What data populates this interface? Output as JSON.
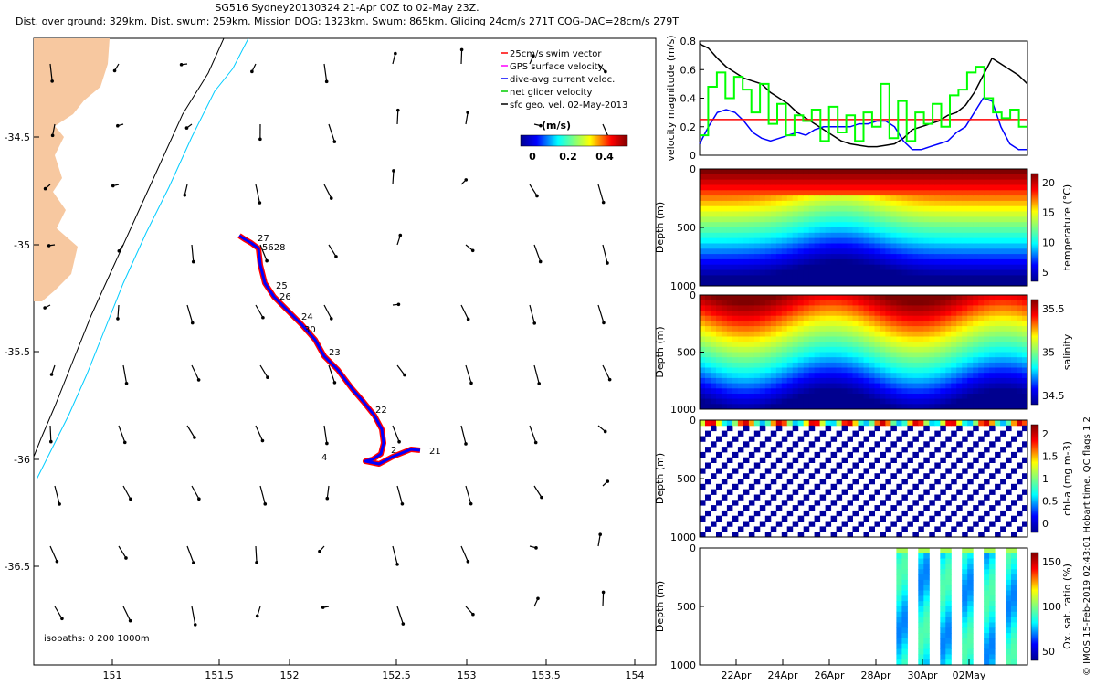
{
  "title_line1": "SG516 Sydney20130324 21-Apr 00Z to 02-May 23Z.",
  "title_line2": "Dist. over ground: 329km. Dist. swum: 259km. Mission DOG: 1323km. Swum: 865km. Gliding 24cm/s 271T COG-DAC=28cm/s 279T",
  "credit": "© IMOS 15-Feb-2019 02:43:01 Hobart time. QC flags 1  2",
  "map": {
    "legend": [
      {
        "label": "25cm/s swim vector",
        "color": "#ff0000"
      },
      {
        "label": "GPS surface velocity",
        "color": "#ff00ff"
      },
      {
        "label": "dive-avg current veloc.",
        "color": "#0000ff"
      },
      {
        "label": "net glider velocity",
        "color": "#00cc00"
      },
      {
        "label": "sfc geo. vel. 02-May-2013",
        "color": "#000000"
      }
    ],
    "colorbar_unit": "(m/s)",
    "colorbar_ticks": [
      "0",
      "0.2",
      "0.4"
    ],
    "isobaths_label": "isobaths: 0   200  1000m",
    "x_ticks": [
      "151",
      "151.5",
      "152",
      "152.5",
      "153",
      "153.5",
      "154"
    ],
    "y_ticks": [
      "-34.5",
      "-35",
      "-35.5",
      "-36",
      "-36.5"
    ],
    "colors": {
      "land": "#f7c8a0",
      "coast_200": "#00ccff",
      "coast_1000": "#000000",
      "track_swim": "#ff0000",
      "track_dac": "#0000ff"
    }
  },
  "chart_data": [
    {
      "type": "line",
      "ylabel": "velocity magnitude (m/s)",
      "y_ticks": [
        "0",
        "0.2",
        "0.4",
        "0.6",
        "0.8"
      ],
      "ylim": [
        0,
        0.8
      ],
      "series": [
        {
          "color": "#000000",
          "values": [
            0.78,
            0.75,
            0.68,
            0.62,
            0.58,
            0.54,
            0.52,
            0.5,
            0.44,
            0.4,
            0.36,
            0.3,
            0.26,
            0.22,
            0.18,
            0.14,
            0.1,
            0.08,
            0.07,
            0.06,
            0.06,
            0.07,
            0.08,
            0.12,
            0.18,
            0.2,
            0.22,
            0.24,
            0.28,
            0.3,
            0.35,
            0.44,
            0.56,
            0.68,
            0.64,
            0.6,
            0.56,
            0.5
          ]
        },
        {
          "color": "#0000ff",
          "values": [
            0.08,
            0.2,
            0.3,
            0.32,
            0.3,
            0.24,
            0.16,
            0.12,
            0.1,
            0.12,
            0.14,
            0.16,
            0.14,
            0.18,
            0.2,
            0.2,
            0.2,
            0.2,
            0.22,
            0.22,
            0.24,
            0.24,
            0.2,
            0.1,
            0.04,
            0.04,
            0.06,
            0.08,
            0.1,
            0.16,
            0.2,
            0.3,
            0.4,
            0.38,
            0.2,
            0.08,
            0.04,
            0.04
          ]
        },
        {
          "color": "#ff0000",
          "values": [
            0.25,
            0.25
          ]
        },
        {
          "color": "#00ff00",
          "values": [
            0.14,
            0.48,
            0.58,
            0.4,
            0.55,
            0.46,
            0.3,
            0.5,
            0.22,
            0.36,
            0.14,
            0.28,
            0.24,
            0.32,
            0.1,
            0.34,
            0.16,
            0.28,
            0.1,
            0.3,
            0.2,
            0.5,
            0.12,
            0.38,
            0.1,
            0.3,
            0.22,
            0.36,
            0.2,
            0.42,
            0.46,
            0.58,
            0.62,
            0.4,
            0.3,
            0.26,
            0.32,
            0.2
          ]
        }
      ]
    },
    {
      "type": "heatmap",
      "ylabel": "Depth (m)",
      "cbar_label": "temperature (°C)",
      "y_ticks": [
        "0",
        "500",
        "1000"
      ],
      "cbar_ticks": [
        "20",
        "15",
        "10",
        "5"
      ],
      "ylim": [
        1000,
        0
      ],
      "clim": [
        4,
        24
      ]
    },
    {
      "type": "heatmap",
      "ylabel": "Depth (m)",
      "cbar_label": "salinity",
      "y_ticks": [
        "0",
        "500",
        "1000"
      ],
      "cbar_ticks": [
        "35.5",
        "35",
        "34.5"
      ],
      "ylim": [
        1000,
        0
      ],
      "clim": [
        34.3,
        35.8
      ]
    },
    {
      "type": "heatmap",
      "ylabel": "Depth (m)",
      "cbar_label": "chl-a (mg m-3)",
      "y_ticks": [
        "0",
        "500",
        "1000"
      ],
      "cbar_ticks": [
        "2",
        "1.5",
        "1",
        "0.5",
        "0"
      ],
      "ylim": [
        1000,
        0
      ],
      "clim": [
        0,
        2
      ]
    },
    {
      "type": "heatmap",
      "ylabel": "Depth (m)",
      "cbar_label": "Ox. sat. ratio (%)",
      "y_ticks": [
        "0",
        "500",
        "1000"
      ],
      "cbar_ticks": [
        "150",
        "100",
        "50"
      ],
      "ylim": [
        1000,
        0
      ],
      "clim": [
        30,
        170
      ]
    }
  ],
  "time_ticks": [
    "22Apr",
    "24Apr",
    "26Apr",
    "28Apr",
    "30Apr",
    "02May"
  ],
  "profile_labels": [
    "27",
    "5628",
    "25",
    "26",
    "24",
    "30",
    "23",
    "22",
    "2",
    "21",
    "4"
  ]
}
